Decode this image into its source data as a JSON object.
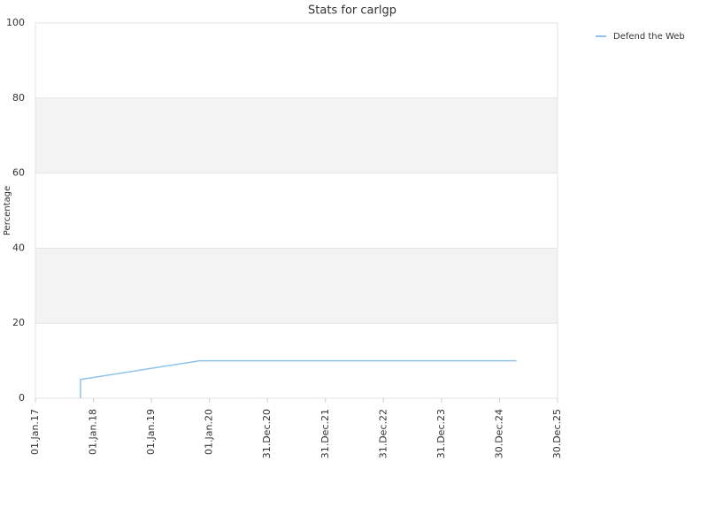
{
  "chart_data": {
    "type": "line",
    "title": "Stats for carlgp",
    "ylabel": "Percentage",
    "series": [
      {
        "name": "Defend the Web",
        "color": "#8ec3ea",
        "x": [
          "2017-10-12",
          "2017-10-12",
          "2019-11-01",
          "2025-04-15"
        ],
        "values": [
          0,
          5,
          10,
          10
        ]
      }
    ],
    "xlim": [
      "2017-01-01",
      "2025-12-30"
    ],
    "xticks": [
      {
        "value": "2017-01-01",
        "label": "01.Jan.17"
      },
      {
        "value": "2018-01-01",
        "label": "01.Jan.18"
      },
      {
        "value": "2019-01-01",
        "label": "01.Jan.19"
      },
      {
        "value": "2020-01-01",
        "label": "01.Jan.20"
      },
      {
        "value": "2020-12-31",
        "label": "31.Dec.20"
      },
      {
        "value": "2021-12-31",
        "label": "31.Dec.21"
      },
      {
        "value": "2022-12-31",
        "label": "31.Dec.22"
      },
      {
        "value": "2023-12-31",
        "label": "31.Dec.23"
      },
      {
        "value": "2024-12-30",
        "label": "30.Dec.24"
      },
      {
        "value": "2025-12-30",
        "label": "30.Dec.25"
      }
    ],
    "ylim": [
      0,
      100
    ],
    "yticks": [
      0,
      20,
      40,
      60,
      80,
      100
    ],
    "grid": true,
    "band_color": "#f3f3f3",
    "legend": "top-right"
  }
}
